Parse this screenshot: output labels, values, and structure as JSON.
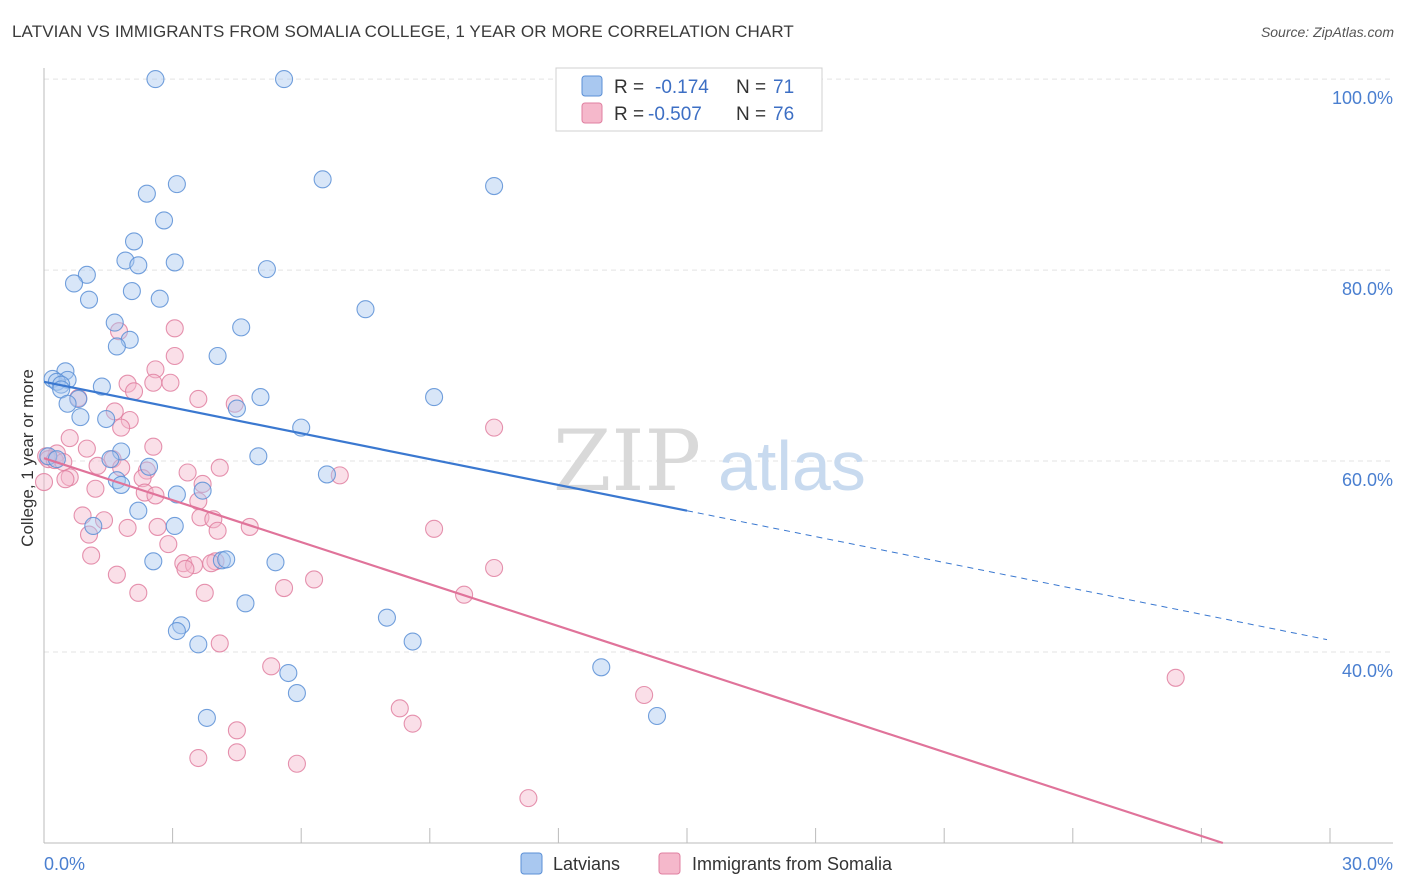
{
  "header": {
    "title": "LATVIAN VS IMMIGRANTS FROM SOMALIA COLLEGE, 1 YEAR OR MORE CORRELATION CHART",
    "source": "Source: ZipAtlas.com"
  },
  "watermark": {
    "zip": "ZIP",
    "atlas": "atlas"
  },
  "colors": {
    "blue_fill": "#a9c8f0",
    "blue_stroke": "#5b8fd6",
    "blue_line": "#3a78d0",
    "pink_fill": "#f5b8cb",
    "pink_stroke": "#e07fa0",
    "pink_line": "#e0739a",
    "tick_text": "#4a7fd0",
    "grid": "#e3e3e3"
  },
  "legend": {
    "rows": [
      {
        "r_label": "R =",
        "r_value": "-0.174",
        "n_label": "N =",
        "n_value": "71"
      },
      {
        "r_label": "R =",
        "r_value": "-0.507",
        "n_label": "N =",
        "n_value": "76"
      }
    ]
  },
  "bottom_legend": [
    "Latvians",
    "Immigrants from Somalia"
  ],
  "chart_data": {
    "type": "scatter",
    "xlabel": "",
    "ylabel": "College, 1 year or more",
    "xlim": [
      0,
      30
    ],
    "ylim": [
      20,
      102
    ],
    "x_tick_labels": [
      "0.0%",
      "30.0%"
    ],
    "y_ticks": [
      40,
      60,
      80,
      100
    ],
    "y_tick_labels": [
      "40.0%",
      "60.0%",
      "80.0%",
      "100.0%"
    ],
    "grid": true,
    "legend_position": "top-center",
    "series": [
      {
        "name": "Latvians",
        "r": -0.174,
        "n": 71,
        "trend": {
          "x0": 0,
          "y0": 68.3,
          "x1": 15,
          "y1": 54.8,
          "dashed_to_x": 30,
          "dashed_to_y": 41.3
        },
        "points": [
          [
            2.6,
            100
          ],
          [
            5.6,
            100
          ],
          [
            2.4,
            88
          ],
          [
            3.1,
            89
          ],
          [
            6.5,
            89.5
          ],
          [
            10.5,
            88.8
          ],
          [
            2.8,
            85.2
          ],
          [
            2.1,
            83
          ],
          [
            1.9,
            81
          ],
          [
            2.2,
            80.5
          ],
          [
            3.05,
            80.8
          ],
          [
            5.2,
            80.1
          ],
          [
            1.0,
            79.5
          ],
          [
            0.7,
            78.6
          ],
          [
            2.05,
            77.8
          ],
          [
            2.7,
            77
          ],
          [
            1.05,
            76.9
          ],
          [
            7.5,
            75.9
          ],
          [
            1.65,
            74.5
          ],
          [
            4.6,
            74
          ],
          [
            2.0,
            72.7
          ],
          [
            1.7,
            72
          ],
          [
            4.05,
            71
          ],
          [
            0.5,
            69.4
          ],
          [
            0.2,
            68.6
          ],
          [
            0.55,
            68.5
          ],
          [
            0.3,
            68.3
          ],
          [
            0.4,
            68
          ],
          [
            1.35,
            67.8
          ],
          [
            0.4,
            67.5
          ],
          [
            5.05,
            66.7
          ],
          [
            9.1,
            66.7
          ],
          [
            0.8,
            66.5
          ],
          [
            0.55,
            66
          ],
          [
            4.5,
            65.5
          ],
          [
            0.85,
            64.6
          ],
          [
            1.45,
            64.4
          ],
          [
            6.0,
            63.5
          ],
          [
            1.8,
            61
          ],
          [
            0.1,
            60.5
          ],
          [
            0.3,
            60.2
          ],
          [
            5.0,
            60.5
          ],
          [
            1.55,
            60.2
          ],
          [
            2.45,
            59.4
          ],
          [
            6.6,
            58.6
          ],
          [
            1.7,
            58
          ],
          [
            1.8,
            57.5
          ],
          [
            3.7,
            56.9
          ],
          [
            3.1,
            56.5
          ],
          [
            2.2,
            54.8
          ],
          [
            1.15,
            53.2
          ],
          [
            3.05,
            53.2
          ],
          [
            2.55,
            49.5
          ],
          [
            4.15,
            49.6
          ],
          [
            4.25,
            49.7
          ],
          [
            5.4,
            49.4
          ],
          [
            4.7,
            45.1
          ],
          [
            8.0,
            43.6
          ],
          [
            3.2,
            42.8
          ],
          [
            3.1,
            42.2
          ],
          [
            3.6,
            40.8
          ],
          [
            8.6,
            41.1
          ],
          [
            5.7,
            37.8
          ],
          [
            13.0,
            38.4
          ],
          [
            5.9,
            35.7
          ],
          [
            3.8,
            33.1
          ],
          [
            14.3,
            33.3
          ]
        ]
      },
      {
        "name": "Immigrants from Somalia",
        "r": -0.507,
        "n": 76,
        "trend": {
          "x0": 0,
          "y0": 60.3,
          "x1": 27.5,
          "y1": 20.0
        },
        "points": [
          [
            3.05,
            73.9
          ],
          [
            1.75,
            73.6
          ],
          [
            3.05,
            71
          ],
          [
            2.6,
            69.6
          ],
          [
            1.95,
            68.1
          ],
          [
            2.55,
            68.2
          ],
          [
            2.95,
            68.2
          ],
          [
            2.1,
            67.3
          ],
          [
            0.8,
            66.6
          ],
          [
            3.6,
            66.5
          ],
          [
            4.45,
            66
          ],
          [
            1.65,
            65.2
          ],
          [
            2.0,
            64.3
          ],
          [
            1.8,
            63.5
          ],
          [
            10.5,
            63.5
          ],
          [
            0.6,
            62.4
          ],
          [
            2.55,
            61.5
          ],
          [
            1.0,
            61.3
          ],
          [
            0.3,
            60.8
          ],
          [
            0.05,
            60.5
          ],
          [
            0.1,
            60.2
          ],
          [
            0.25,
            60.1
          ],
          [
            1.6,
            60.2
          ],
          [
            0.45,
            59.9
          ],
          [
            1.25,
            59.5
          ],
          [
            1.8,
            59.3
          ],
          [
            4.1,
            59.3
          ],
          [
            2.4,
            59
          ],
          [
            3.35,
            58.8
          ],
          [
            6.9,
            58.5
          ],
          [
            0.6,
            58.3
          ],
          [
            2.3,
            58.2
          ],
          [
            0.0,
            57.8
          ],
          [
            0.5,
            58.1
          ],
          [
            1.2,
            57.1
          ],
          [
            3.7,
            57.6
          ],
          [
            2.35,
            56.7
          ],
          [
            2.6,
            56.4
          ],
          [
            3.6,
            55.8
          ],
          [
            0.9,
            54.3
          ],
          [
            1.4,
            53.8
          ],
          [
            3.65,
            54.1
          ],
          [
            3.95,
            53.9
          ],
          [
            4.05,
            52.7
          ],
          [
            1.95,
            53
          ],
          [
            2.65,
            53.1
          ],
          [
            4.8,
            53.1
          ],
          [
            9.1,
            52.9
          ],
          [
            1.05,
            52.3
          ],
          [
            2.9,
            51.3
          ],
          [
            1.1,
            50.1
          ],
          [
            3.25,
            49.3
          ],
          [
            4.0,
            49.5
          ],
          [
            3.5,
            49.1
          ],
          [
            3.3,
            48.7
          ],
          [
            3.9,
            49.3
          ],
          [
            10.5,
            48.8
          ],
          [
            1.7,
            48.1
          ],
          [
            6.3,
            47.6
          ],
          [
            5.6,
            46.7
          ],
          [
            2.2,
            46.2
          ],
          [
            3.75,
            46.2
          ],
          [
            9.8,
            46
          ],
          [
            4.1,
            40.9
          ],
          [
            26.4,
            37.3
          ],
          [
            5.3,
            38.5
          ],
          [
            14.0,
            35.5
          ],
          [
            8.3,
            34.1
          ],
          [
            8.6,
            32.5
          ],
          [
            4.5,
            31.8
          ],
          [
            4.5,
            29.5
          ],
          [
            3.6,
            28.9
          ],
          [
            5.9,
            28.3
          ],
          [
            11.3,
            24.7
          ]
        ]
      }
    ]
  }
}
